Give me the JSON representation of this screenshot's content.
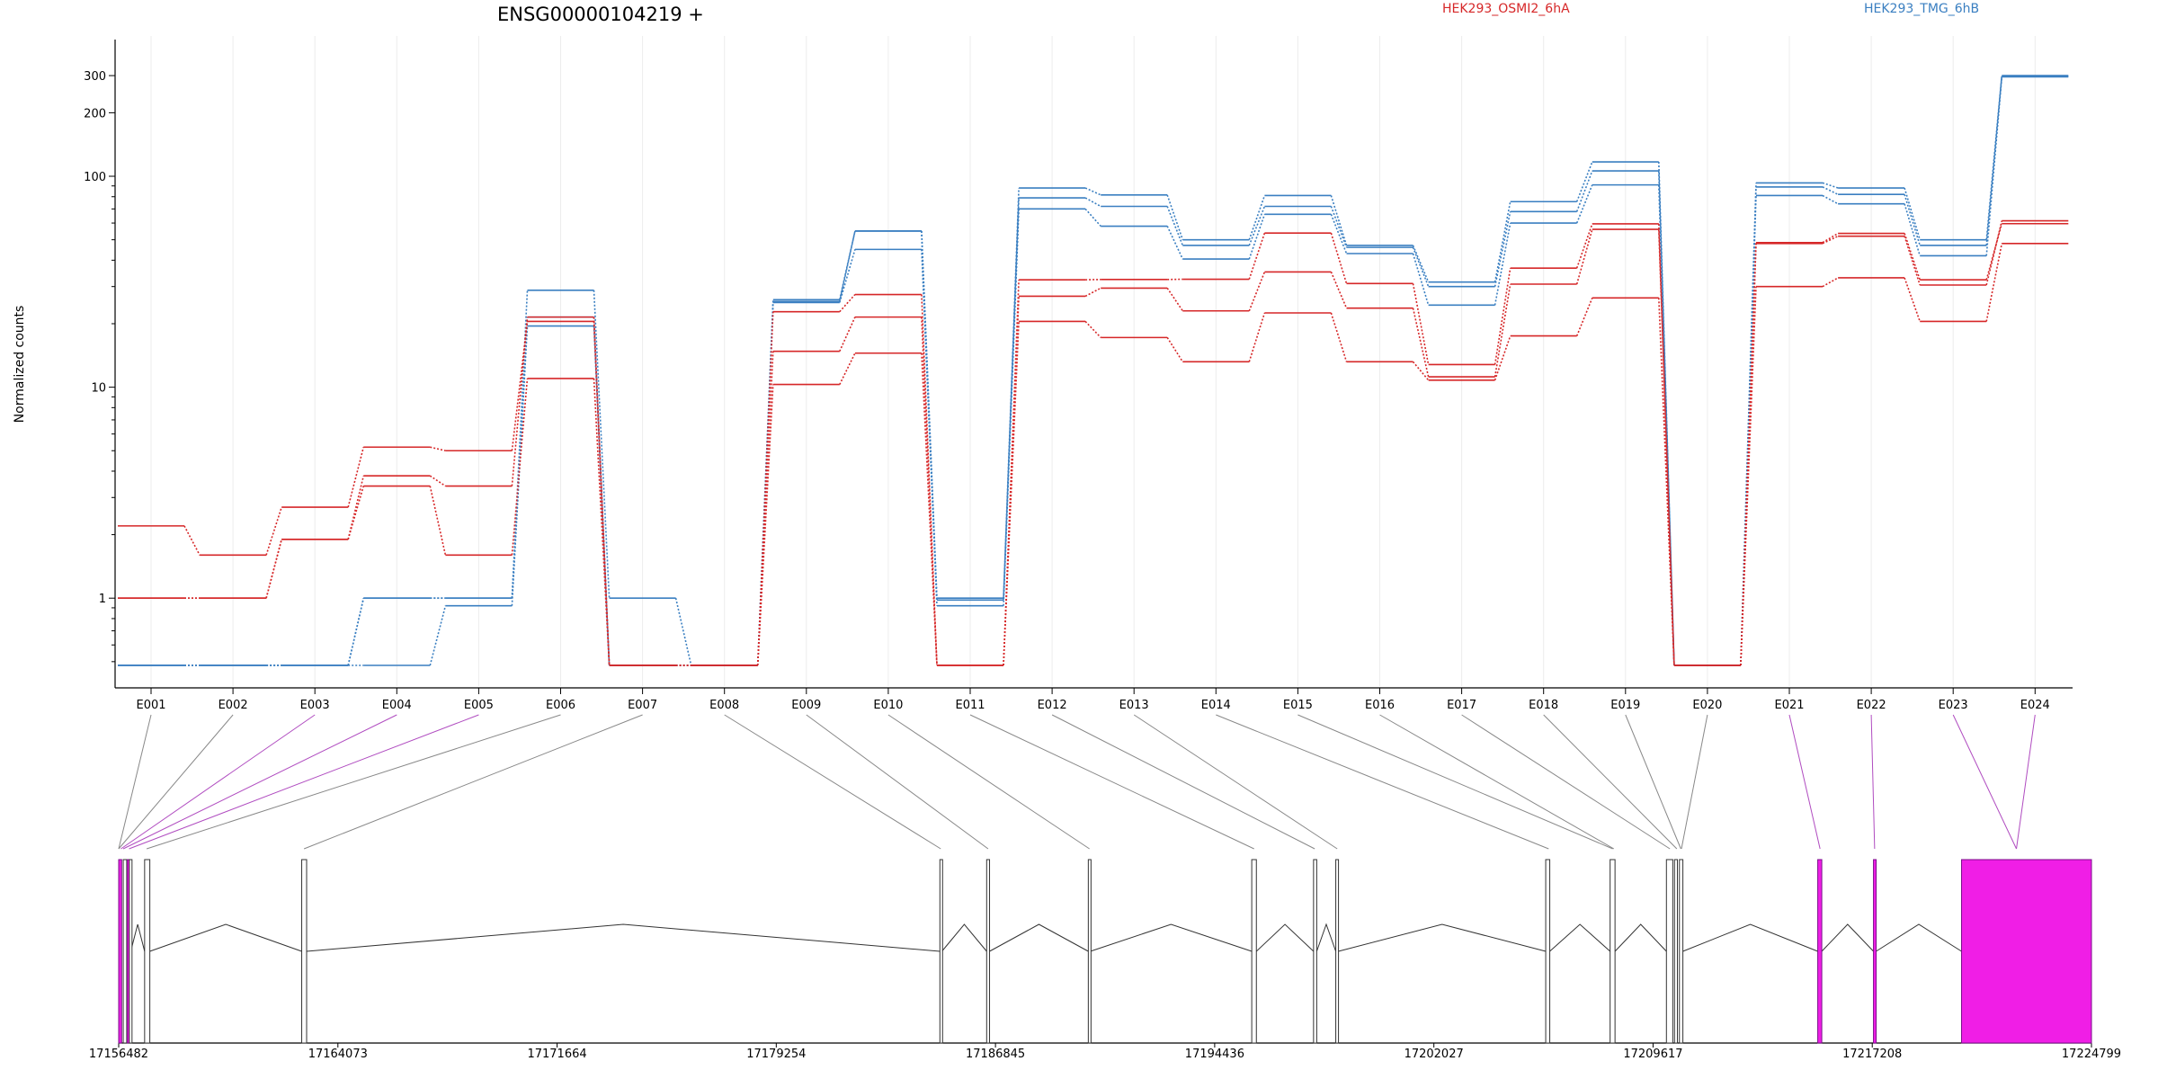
{
  "chart_data": {
    "type": "line",
    "title": "ENSG00000104219 +",
    "ylabel": "Normalized counts",
    "y_scale": "log",
    "ylim": [
      0.48,
      380
    ],
    "y_ticks": [
      1,
      10,
      100,
      200,
      300
    ],
    "grid": "vertical",
    "legend_placement": "top",
    "categories": [
      "E001",
      "E002",
      "E003",
      "E004",
      "E005",
      "E006",
      "E007",
      "E008",
      "E009",
      "E010",
      "E011",
      "E012",
      "E013",
      "E014",
      "E015",
      "E016",
      "E017",
      "E018",
      "E019",
      "E020",
      "E021",
      "E022",
      "E023",
      "E024"
    ],
    "conditions": [
      {
        "name": "HEK293_OSMI2_6hA",
        "color": "#d62728"
      },
      {
        "name": "HEK293_TMG_6hB",
        "color": "#3a7fc1"
      }
    ],
    "series": [
      {
        "condition": "HEK293_OSMI2_6hA",
        "values": [
          2.2,
          1.6,
          2.7,
          5.2,
          5.0,
          20.5,
          0.48,
          0.48,
          22.8,
          27.5,
          0.48,
          32.3,
          32.4,
          32.5,
          53.8,
          31.0,
          12.8,
          36.7,
          59.5,
          0.48,
          48.5,
          53.6,
          32.3,
          59.6
        ]
      },
      {
        "condition": "HEK293_OSMI2_6hA",
        "values": [
          1.0,
          1.0,
          1.9,
          3.8,
          3.4,
          21.5,
          0.48,
          0.48,
          14.8,
          21.5,
          0.48,
          27.0,
          29.5,
          23.0,
          35.2,
          23.7,
          11.2,
          30.8,
          56.0,
          0.48,
          48.0,
          52.0,
          30.5,
          61.5
        ]
      },
      {
        "condition": "HEK293_OSMI2_6hA",
        "values": [
          1.0,
          1.0,
          1.9,
          3.4,
          1.6,
          11.0,
          0.48,
          0.48,
          10.3,
          14.5,
          0.48,
          20.5,
          17.2,
          13.2,
          22.5,
          13.2,
          10.8,
          17.5,
          26.5,
          0.48,
          30.0,
          33.0,
          20.5,
          48.0
        ]
      },
      {
        "condition": "HEK293_TMG_6hB",
        "values": [
          0.48,
          0.48,
          0.48,
          1.0,
          1.0,
          28.8,
          1.0,
          0.48,
          26.0,
          55.0,
          1.0,
          88.0,
          81.5,
          50.0,
          81.0,
          47.0,
          31.5,
          75.8,
          117.0,
          0.48,
          93.0,
          88.0,
          50.0,
          300.0
        ]
      },
      {
        "condition": "HEK293_TMG_6hB",
        "values": [
          0.48,
          0.48,
          0.48,
          1.0,
          1.0,
          21.5,
          0.48,
          0.48,
          25.5,
          55.0,
          0.98,
          79.0,
          72.0,
          47.0,
          72.0,
          46.0,
          30.0,
          68.0,
          106.0,
          0.48,
          89.0,
          82.0,
          47.0,
          298.0
        ]
      },
      {
        "condition": "HEK293_TMG_6hB",
        "values": [
          0.48,
          0.48,
          0.48,
          0.48,
          0.92,
          19.5,
          0.48,
          0.48,
          25.2,
          45.0,
          0.92,
          70.0,
          58.0,
          40.5,
          66.0,
          43.0,
          24.5,
          60.0,
          91.0,
          0.48,
          81.0,
          74.0,
          42.0,
          296.0
        ]
      }
    ],
    "gene_model": {
      "start": 17156482,
      "end": 17224799,
      "axis_ticks": [
        17156482,
        17164073,
        17171664,
        17179254,
        17186845,
        17194436,
        17202027,
        17209617,
        17217208,
        17224799
      ],
      "highlight_color": "#f01ee6",
      "exons": [
        {
          "start": 17156482,
          "end": 17156585,
          "highlight": true
        },
        {
          "start": 17156640,
          "end": 17156760,
          "highlight": false
        },
        {
          "start": 17156780,
          "end": 17156840,
          "highlight": true
        },
        {
          "start": 17156850,
          "end": 17156900,
          "highlight": false
        },
        {
          "start": 17157380,
          "end": 17157560,
          "highlight": false
        },
        {
          "start": 17162820,
          "end": 17162990,
          "highlight": false
        },
        {
          "start": 17184920,
          "end": 17184990,
          "highlight": false
        },
        {
          "start": 17186540,
          "end": 17186640,
          "highlight": false
        },
        {
          "start": 17190060,
          "end": 17190130,
          "highlight": false
        },
        {
          "start": 17195720,
          "end": 17195880,
          "highlight": false
        },
        {
          "start": 17197860,
          "end": 17197970,
          "highlight": false
        },
        {
          "start": 17198630,
          "end": 17198720,
          "highlight": false
        },
        {
          "start": 17205900,
          "end": 17206040,
          "highlight": false
        },
        {
          "start": 17208130,
          "end": 17208300,
          "highlight": false
        },
        {
          "start": 17210080,
          "end": 17210300,
          "highlight": false
        },
        {
          "start": 17210360,
          "end": 17210460,
          "highlight": false
        },
        {
          "start": 17210530,
          "end": 17210650,
          "highlight": false
        },
        {
          "start": 17215320,
          "end": 17215460,
          "highlight": true
        },
        {
          "start": 17217250,
          "end": 17217340,
          "highlight": true
        },
        {
          "start": 17220300,
          "end": 17224799,
          "highlight": true
        }
      ],
      "bin_targets": [
        17156482,
        17156482,
        17156560,
        17156640,
        17156840,
        17157450,
        17162900,
        17184950,
        17186590,
        17190100,
        17195800,
        17197900,
        17198680,
        17206000,
        17208220,
        17208260,
        17210200,
        17210440,
        17210580,
        17210600,
        17215400,
        17217290,
        17222200,
        17222200
      ],
      "bin_highlight": [
        false,
        false,
        true,
        true,
        true,
        false,
        false,
        false,
        false,
        false,
        false,
        false,
        false,
        false,
        false,
        false,
        false,
        false,
        false,
        false,
        true,
        true,
        true,
        true
      ]
    }
  }
}
